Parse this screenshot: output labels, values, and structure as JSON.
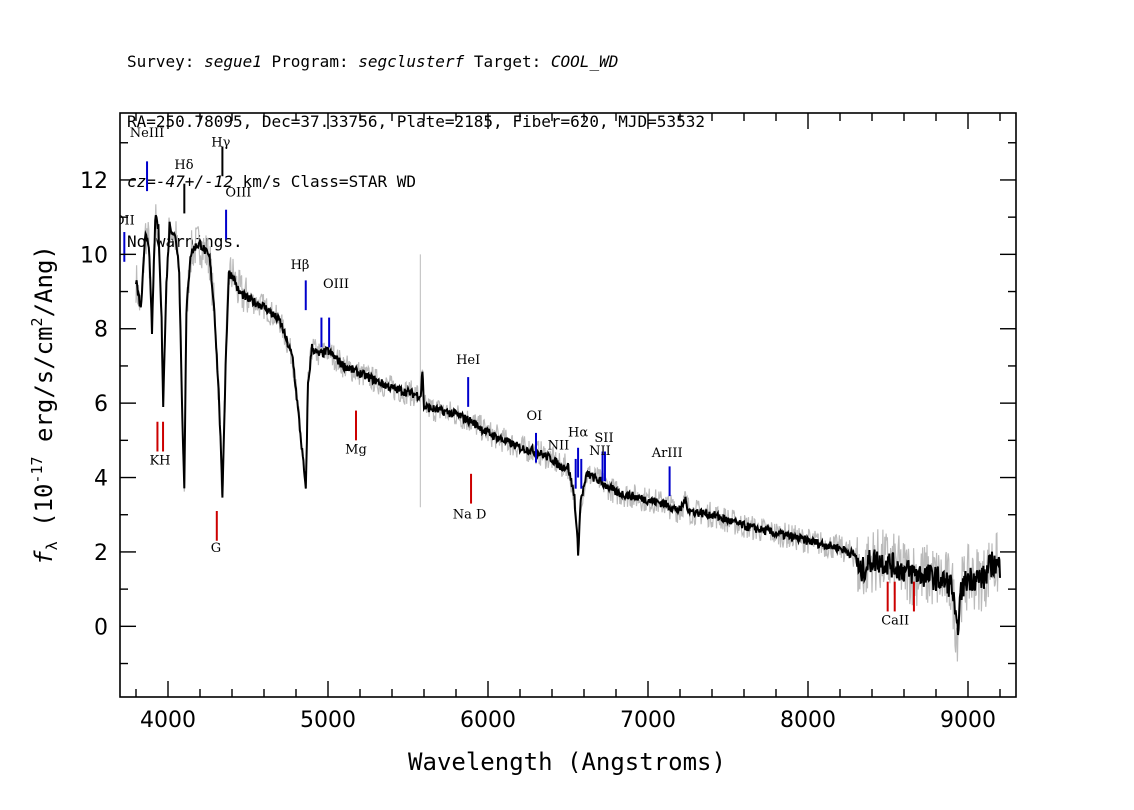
{
  "header": {
    "survey_label": "Survey:",
    "survey": "segue1",
    "program_label": "Program:",
    "program": "segclusterf",
    "target_label": "Target:",
    "target": "COOL_WD",
    "line2": "RA=250.78095, Dec=37.33756, Plate=2185, Fiber=620, MJD=53532",
    "cz_prefix": "cz=",
    "cz_value": "-47+/-12",
    "cz_suffix": " km/s Class=STAR WD",
    "warnings": "No warnings."
  },
  "chart_data": {
    "type": "line",
    "title": "",
    "xlabel": "Wavelength (Angstroms)",
    "ylabel": "fλ (10⁻¹⁷ erg/s/cm²/Ang)",
    "xlim": [
      3700,
      9300
    ],
    "ylim": [
      -1.9,
      13.8
    ],
    "x_ticks": [
      4000,
      5000,
      6000,
      7000,
      8000,
      9000
    ],
    "y_ticks": [
      0,
      2,
      4,
      6,
      8,
      10,
      12
    ],
    "grid": false,
    "series": [
      {
        "name": "",
        "color": "#000000",
        "noise_color": "#bbbbbb",
        "x": [
          3800,
          3830,
          3860,
          3880,
          3900,
          3920,
          3940,
          3960,
          3970,
          3990,
          4010,
          4030,
          4050,
          4070,
          4090,
          4102,
          4115,
          4140,
          4170,
          4200,
          4230,
          4260,
          4290,
          4320,
          4340,
          4360,
          4380,
          4410,
          4440,
          4500,
          4600,
          4700,
          4780,
          4820,
          4850,
          4861,
          4875,
          4900,
          4940,
          5000,
          5100,
          5200,
          5400,
          5580,
          5590,
          5600,
          5800,
          5900,
          6000,
          6100,
          6200,
          6300,
          6400,
          6450,
          6500,
          6540,
          6563,
          6580,
          6620,
          6700,
          6800,
          6900,
          7000,
          7100,
          7200,
          7230,
          7260,
          7400,
          7600,
          7800,
          8000,
          8200,
          8300,
          8320,
          8400,
          8500,
          8600,
          8700,
          8800,
          8900,
          8930,
          8960,
          9000,
          9100,
          9150,
          9200
        ],
        "y": [
          9.3,
          8.5,
          10.6,
          10.3,
          7.9,
          11.0,
          10.7,
          8.2,
          6.0,
          9.2,
          10.8,
          10.6,
          10.4,
          9.6,
          5.5,
          3.8,
          8.4,
          10.0,
          10.2,
          10.3,
          10.1,
          9.9,
          8.5,
          6.0,
          3.5,
          7.0,
          9.5,
          9.4,
          9.0,
          8.8,
          8.6,
          8.2,
          7.2,
          5.5,
          4.2,
          3.6,
          6.5,
          7.5,
          7.3,
          7.4,
          7.0,
          6.8,
          6.4,
          6.2,
          6.9,
          5.9,
          5.7,
          5.5,
          5.2,
          5.0,
          4.8,
          4.7,
          4.5,
          4.3,
          4.3,
          3.5,
          2.0,
          3.4,
          4.1,
          3.9,
          3.6,
          3.5,
          3.4,
          3.3,
          3.1,
          3.4,
          3.1,
          3.0,
          2.7,
          2.5,
          2.3,
          2.1,
          1.9,
          1.4,
          1.8,
          1.7,
          1.5,
          1.4,
          1.3,
          1.1,
          -0.2,
          1.0,
          1.3,
          1.3,
          1.7,
          1.6
        ]
      }
    ],
    "spectral_lines": [
      {
        "label": "OII",
        "x": 3727,
        "color": "#0000cc",
        "position": "top",
        "y": 10.6
      },
      {
        "label": "NeIII",
        "x": 3869,
        "color": "#0000cc",
        "position": "top",
        "y": 12.5
      },
      {
        "label": "Hδ",
        "x": 4102,
        "color": "#000000",
        "position": "top",
        "y": 11.9
      },
      {
        "label": "Hγ",
        "x": 4340,
        "color": "#000000",
        "position": "top",
        "y": 12.9
      },
      {
        "label": "OIII",
        "x": 4363,
        "color": "#0000cc",
        "position": "top",
        "y": 11.2
      },
      {
        "label": "Hβ",
        "x": 4861,
        "color": "#0000cc",
        "position": "top",
        "y": 9.3
      },
      {
        "label": "OIII",
        "x": 4959,
        "color": "#0000cc",
        "position": "top",
        "y": 8.3
      },
      {
        "label": "OIII",
        "x": 5007,
        "color": "#0000cc",
        "position": "top",
        "y": 8.3
      },
      {
        "label": "HeI",
        "x": 5876,
        "color": "#0000cc",
        "position": "top",
        "y": 6.7
      },
      {
        "label": "OI",
        "x": 6300,
        "color": "#0000cc",
        "position": "top",
        "y": 5.2
      },
      {
        "label": "NII",
        "x": 6548,
        "color": "#0000cc",
        "position": "top",
        "y": 4.5
      },
      {
        "label": "Hα",
        "x": 6563,
        "color": "#0000cc",
        "position": "top",
        "y": 4.8
      },
      {
        "label": "NII",
        "x": 6583,
        "color": "#0000cc",
        "position": "top",
        "y": 4.5
      },
      {
        "label": "SII",
        "x": 6716,
        "color": "#0000cc",
        "position": "top",
        "y": 4.7
      },
      {
        "label": "SII",
        "x": 6731,
        "color": "#0000cc",
        "position": "top",
        "y": 4.7
      },
      {
        "label": "ArIII",
        "x": 7135,
        "color": "#0000cc",
        "position": "top",
        "y": 4.3
      },
      {
        "label": "K",
        "x": 3934,
        "color": "#cc0000",
        "position": "bottom",
        "y": 5.5
      },
      {
        "label": "H",
        "x": 3969,
        "color": "#cc0000",
        "position": "bottom",
        "y": 5.5
      },
      {
        "label": "G",
        "x": 4305,
        "color": "#cc0000",
        "position": "bottom",
        "y": 3.1
      },
      {
        "label": "Mg",
        "x": 5175,
        "color": "#cc0000",
        "position": "bottom",
        "y": 5.8
      },
      {
        "label": "Na D",
        "x": 5894,
        "color": "#cc0000",
        "position": "bottom",
        "y": 4.1
      },
      {
        "label": "CaII",
        "x": 8498,
        "color": "#cc0000",
        "position": "bottom",
        "y": 1.2
      },
      {
        "label": "CaII",
        "x": 8542,
        "color": "#cc0000",
        "position": "bottom",
        "y": 1.2
      },
      {
        "label": "CaII",
        "x": 8662,
        "color": "#cc0000",
        "position": "bottom",
        "y": 1.2
      }
    ],
    "label_texts": {
      "KH": "KH",
      "CaII": "CaII",
      "NII_left": "NII",
      "NII_right": "NII",
      "SII": "SII"
    }
  }
}
